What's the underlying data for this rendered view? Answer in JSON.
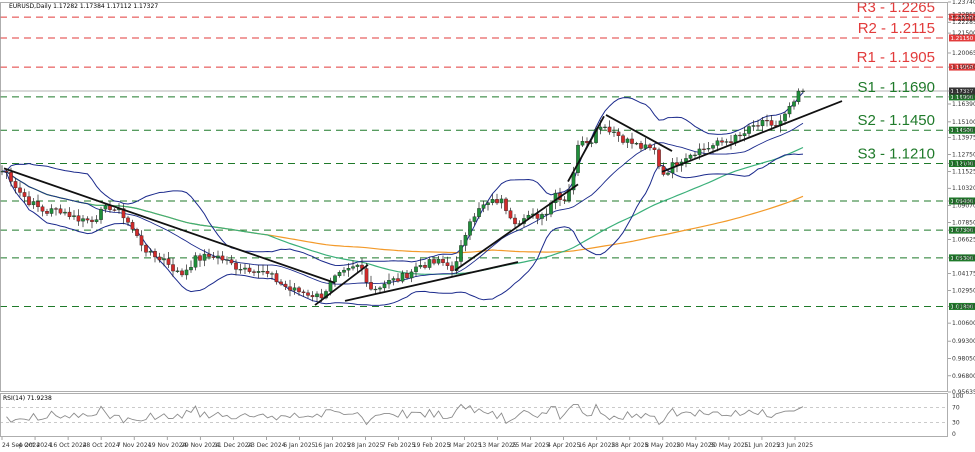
{
  "chart_data": {
    "type": "candlestick",
    "title": "EURUSD,Daily  1.17282 1.17384 1.17112 1.17327",
    "yticks": [
      "1.23740",
      "1.22855",
      "1.22520",
      "1.22285",
      "1.21500",
      "1.20065",
      "1.19050",
      "1.17327",
      "1.16900",
      "1.16390",
      "1.15100",
      "1.14500",
      "1.13975",
      "1.12750",
      "1.12100",
      "1.11525",
      "1.10320",
      "1.09400",
      "1.09070",
      "1.07850",
      "1.07300",
      "1.06625",
      "1.05300",
      "1.04175",
      "1.02950",
      "1.01800",
      "1.00600",
      "0.99300",
      "0.98050",
      "0.96800",
      "0.95635"
    ],
    "xticks": [
      "24 Sep 2024",
      "4 Oct 2024",
      "16 Oct 2024",
      "28 Oct 2024",
      "7 Nov 2024",
      "19 Nov 2024",
      "29 Nov 2024",
      "11 Dec 2024",
      "23 Dec 2024",
      "6 Jan 2025",
      "16 Jan 2025",
      "28 Jan 2025",
      "7 Feb 2025",
      "19 Feb 2025",
      "3 Mar 2025",
      "13 Mar 2025",
      "25 Mar 2025",
      "4 Apr 2025",
      "16 Apr 2025",
      "28 Apr 2025",
      "8 May 2025",
      "20 May 2025",
      "30 May 2025",
      "11 Jun 2025",
      "23 Jun 2025"
    ],
    "levels": [
      {
        "label": "R3 - 1.2265",
        "value": 1.2265,
        "tag": "1.22650",
        "color": "#e23b3b"
      },
      {
        "label": "R2 - 1.2115",
        "value": 1.2115,
        "tag": "1.21150",
        "color": "#e23b3b"
      },
      {
        "label": "R1 - 1.1905",
        "value": 1.1905,
        "tag": "1.19050",
        "color": "#e23b3b"
      },
      {
        "label": "S1 - 1.1690",
        "value": 1.169,
        "tag": "1.16900",
        "color": "#1f7a2a"
      },
      {
        "label": "S2 - 1.1450",
        "value": 1.145,
        "tag": "1.14500",
        "color": "#1f7a2a"
      },
      {
        "label": "S3 - 1.1210",
        "value": 1.121,
        "tag": "1.12100",
        "color": "#1f7a2a"
      },
      {
        "label": "",
        "value": 1.094,
        "tag": "1.09400",
        "color": "#1f7a2a"
      },
      {
        "label": "",
        "value": 1.073,
        "tag": "1.07300",
        "color": "#1f7a2a"
      },
      {
        "label": "",
        "value": 1.053,
        "tag": "1.05300",
        "color": "#1f7a2a"
      },
      {
        "label": "",
        "value": 1.018,
        "tag": "1.01800",
        "color": "#1f7a2a"
      }
    ],
    "current": {
      "value": 1.17327,
      "tag": "1.17327"
    },
    "rsi": {
      "title": "RSI(14) 71.9238",
      "yticks": [
        "100",
        "70",
        "30",
        "0"
      ],
      "value": 71.9238
    },
    "colors": {
      "bull": "#1f8f3a",
      "bear": "#d12b2b",
      "band": "#1b2a8c",
      "ma_green": "#3bb07a",
      "ma_orange": "#f39a2a"
    }
  }
}
